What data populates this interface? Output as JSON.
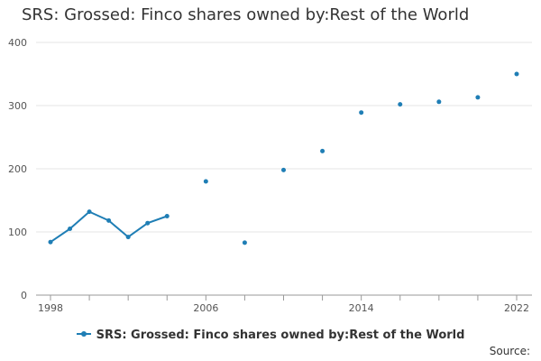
{
  "title": "SRS: Grossed: Finco shares owned by:Rest of the World",
  "source_label": "Source:",
  "legend_label": "SRS: Grossed: Finco shares owned by:Rest of the World",
  "colors": {
    "series": "#1f7eb5",
    "grid": "#e6e6e6",
    "axis": "#999999"
  },
  "chart_data": {
    "type": "line",
    "title": "SRS: Grossed: Finco shares owned by:Rest of the World",
    "xlabel": "",
    "ylabel": "",
    "xlim": [
      1998,
      2022
    ],
    "ylim": [
      0,
      400
    ],
    "x_ticks": [
      1998,
      2006,
      2014,
      2022
    ],
    "y_ticks": [
      0,
      100,
      200,
      300,
      400
    ],
    "grid": "horizontal",
    "legend": "bottom-center",
    "series": [
      {
        "name": "SRS: Grossed: Finco shares owned by:Rest of the World",
        "color": "#1f7eb5",
        "points": [
          {
            "x": 1998,
            "y": 84
          },
          {
            "x": 1999,
            "y": 105
          },
          {
            "x": 2000,
            "y": 132
          },
          {
            "x": 2001,
            "y": 118
          },
          {
            "x": 2002,
            "y": 92
          },
          {
            "x": 2003,
            "y": 114
          },
          {
            "x": 2004,
            "y": 125
          },
          {
            "x": 2006,
            "y": 180
          },
          {
            "x": 2008,
            "y": 83
          },
          {
            "x": 2010,
            "y": 198
          },
          {
            "x": 2012,
            "y": 228
          },
          {
            "x": 2014,
            "y": 289
          },
          {
            "x": 2016,
            "y": 302
          },
          {
            "x": 2018,
            "y": 306
          },
          {
            "x": 2020,
            "y": 313
          },
          {
            "x": 2022,
            "y": 350
          }
        ]
      }
    ]
  }
}
